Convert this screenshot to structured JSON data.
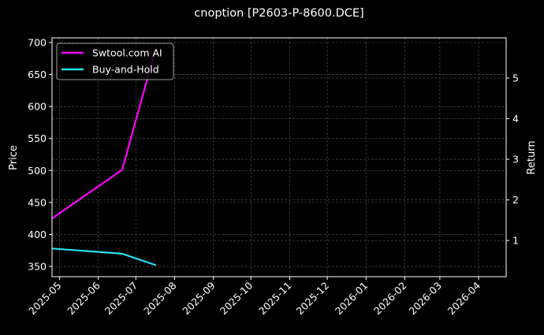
{
  "chart_data": {
    "type": "line",
    "title": "cnoption [P2603-P-8600.DCE]",
    "ylabel": "Price",
    "y2label": "Return",
    "xlim": [
      "2025-04-25",
      "2026-04-23"
    ],
    "ylim": [
      334,
      707.4
    ],
    "y2lim": [
      0.11,
      5.99
    ],
    "x_ticks": [
      "2025-05",
      "2025-06",
      "2025-07",
      "2025-08",
      "2025-09",
      "2025-10",
      "2025-11",
      "2025-12",
      "2026-01",
      "2026-02",
      "2026-03",
      "2026-04"
    ],
    "y_ticks": [
      350,
      400,
      450,
      500,
      550,
      600,
      650,
      700
    ],
    "y2_ticks": [
      1,
      2,
      3,
      4,
      5
    ],
    "grid": true,
    "legend": "top-left",
    "background": "#000000",
    "series": [
      {
        "name": "Swtool.com AI",
        "color": "#ff00ff",
        "x": [
          "2025-04-25",
          "2025-06-20",
          "2025-07-17"
        ],
        "y": [
          425,
          501,
          691
        ]
      },
      {
        "name": "Buy-and-Hold",
        "color": "#22e6ee",
        "x": [
          "2025-04-25",
          "2025-06-20",
          "2025-07-17"
        ],
        "y": [
          378,
          370,
          352
        ]
      }
    ]
  }
}
